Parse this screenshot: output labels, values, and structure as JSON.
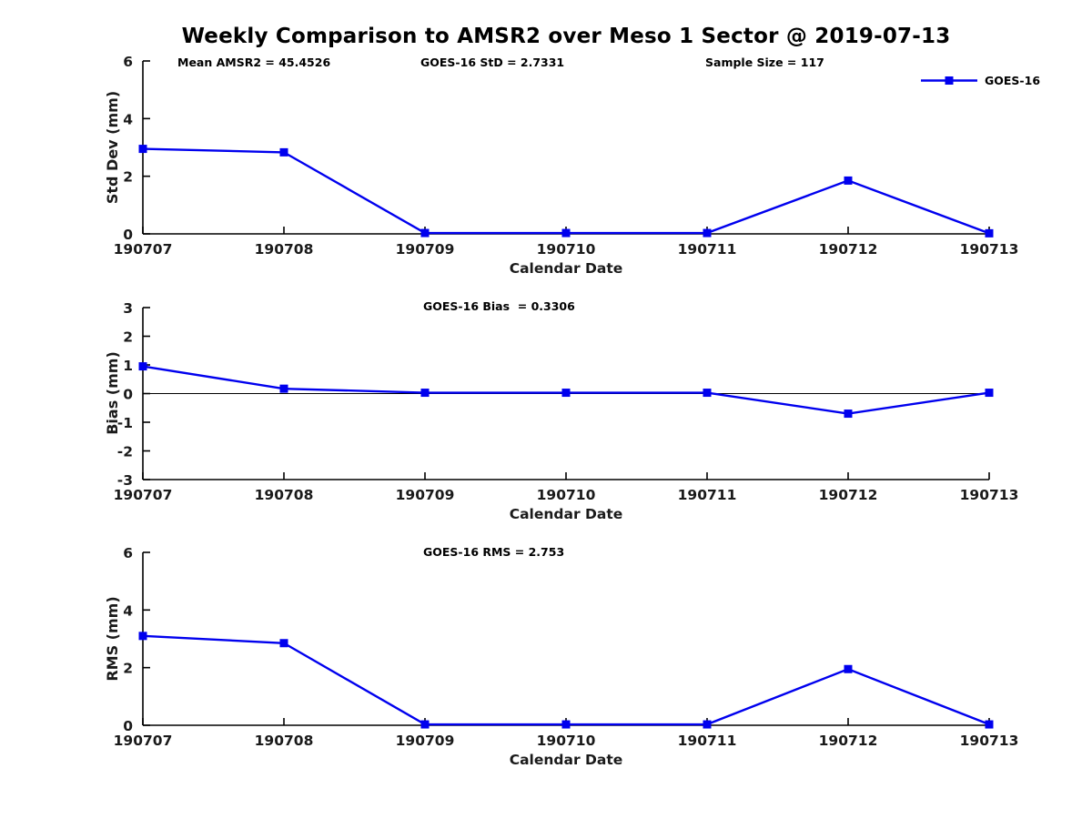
{
  "title": "Weekly Comparison to AMSR2 over Meso 1 Sector @ 2019-07-13",
  "colors": {
    "series": "#0000ee",
    "axis": "#000000",
    "text": "#000000"
  },
  "legend": {
    "label": "GOES-16"
  },
  "chart_data": [
    {
      "type": "line",
      "id": "stddev",
      "annotations": [
        "Mean AMSR2 = 45.4526",
        "GOES-16 StD = 2.7331",
        "Sample Size = 117"
      ],
      "categories": [
        "190707",
        "190708",
        "190709",
        "190710",
        "190711",
        "190712",
        "190713"
      ],
      "series": [
        {
          "name": "GOES-16",
          "values": [
            2.95,
            2.83,
            0.03,
            0.03,
            0.03,
            1.85,
            0.02
          ]
        }
      ],
      "xlabel": "Calendar Date",
      "ylabel": "Std Dev (mm)",
      "ylim": [
        0,
        6
      ],
      "yticks": [
        0,
        2,
        4,
        6
      ],
      "zero_line": false,
      "grid": false,
      "legend_position": "top-right"
    },
    {
      "type": "line",
      "id": "bias",
      "annotations": [
        "GOES-16 Bias  = 0.3306"
      ],
      "categories": [
        "190707",
        "190708",
        "190709",
        "190710",
        "190711",
        "190712",
        "190713"
      ],
      "series": [
        {
          "name": "GOES-16",
          "values": [
            0.95,
            0.17,
            0.03,
            0.03,
            0.03,
            -0.7,
            0.03
          ]
        }
      ],
      "xlabel": "Calendar Date",
      "ylabel": "Bias (mm)",
      "ylim": [
        -3,
        3
      ],
      "yticks": [
        3,
        2,
        1,
        0,
        -1,
        -2,
        -3
      ],
      "zero_line": true,
      "grid": false,
      "legend_position": "none"
    },
    {
      "type": "line",
      "id": "rms",
      "annotations": [
        "GOES-16 RMS = 2.753"
      ],
      "categories": [
        "190707",
        "190708",
        "190709",
        "190710",
        "190711",
        "190712",
        "190713"
      ],
      "series": [
        {
          "name": "GOES-16",
          "values": [
            3.1,
            2.85,
            0.03,
            0.03,
            0.03,
            1.95,
            0.03
          ]
        }
      ],
      "xlabel": "Calendar Date",
      "ylabel": "RMS (mm)",
      "ylim": [
        0,
        6
      ],
      "yticks": [
        0,
        2,
        4,
        6
      ],
      "zero_line": false,
      "grid": false,
      "legend_position": "none"
    }
  ]
}
